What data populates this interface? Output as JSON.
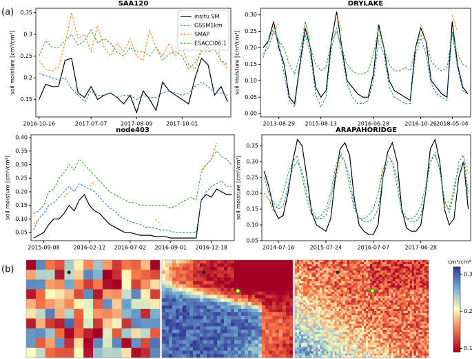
{
  "panel_labels": [
    "(a)",
    "(b)"
  ],
  "chart_data": [
    {
      "type": "line",
      "title": "SAA120",
      "ylabel": "soil moisture [cm³/cm³]",
      "legend": "upper right",
      "categories": [
        "2016-10-16",
        null,
        null,
        null,
        null,
        null,
        null,
        null,
        "2017-07-07",
        null,
        null,
        null,
        null,
        null,
        null,
        "2017-08-09",
        null,
        null,
        null,
        null,
        null,
        null,
        "2017-10-01",
        null,
        null,
        null,
        null,
        null,
        null,
        null
      ],
      "ylim": [
        0.11,
        0.36
      ],
      "yticks": [
        0.15,
        0.2,
        0.25,
        0.3,
        0.35
      ],
      "series": [
        {
          "name": "insitu SM",
          "color": "#000000",
          "linestyle": "solid",
          "values": [
            0.15,
            0.185,
            0.18,
            0.18,
            0.24,
            0.245,
            0.165,
            0.155,
            0.18,
            0.15,
            0.16,
            0.165,
            0.155,
            0.14,
            0.16,
            0.12,
            0.17,
            0.15,
            0.125,
            0.19,
            0.17,
            0.16,
            0.15,
            0.14,
            0.2,
            0.245,
            0.23,
            0.16,
            0.18,
            0.145
          ]
        },
        {
          "name": "GSSM1km",
          "color": "#1f77b4",
          "linestyle": "dashed",
          "values": [
            0.21,
            0.205,
            0.2,
            0.195,
            0.2,
            0.175,
            0.16,
            0.145,
            0.17,
            0.16,
            0.16,
            0.165,
            0.155,
            0.16,
            0.16,
            0.15,
            0.16,
            0.155,
            0.155,
            0.165,
            0.17,
            0.165,
            0.16,
            0.165,
            0.18,
            0.19,
            0.18,
            0.165,
            0.165,
            0.16
          ]
        },
        {
          "name": "SMAP",
          "color": "#ff7f0e",
          "linestyle": "dashed",
          "values": [
            0.24,
            0.22,
            0.215,
            0.225,
            0.28,
            0.35,
            0.29,
            0.3,
            0.26,
            0.32,
            0.27,
            0.25,
            0.28,
            0.26,
            0.29,
            0.25,
            0.24,
            0.31,
            0.27,
            0.25,
            0.28,
            0.25,
            0.27,
            0.23,
            0.22,
            0.27,
            0.28,
            0.3,
            0.24,
            0.22
          ]
        },
        {
          "name": "ESACCI06.1",
          "color": "#2ca02c",
          "linestyle": "dashed",
          "values": [
            0.25,
            0.285,
            0.27,
            0.27,
            0.285,
            0.3,
            0.275,
            0.285,
            0.31,
            0.28,
            0.29,
            0.28,
            0.26,
            0.25,
            0.27,
            0.26,
            0.26,
            0.25,
            0.27,
            0.24,
            0.255,
            0.26,
            0.25,
            0.22,
            0.235,
            0.26,
            0.26,
            0.265,
            0.24,
            0.23
          ]
        }
      ]
    },
    {
      "type": "line",
      "title": "DRYLAKE",
      "ylabel": "soil moisture [cm³/cm³]",
      "categories": [
        null,
        null,
        null,
        "2013-08-29",
        null,
        null,
        null,
        null,
        null,
        null,
        null,
        "2015-08-13",
        null,
        null,
        null,
        null,
        null,
        null,
        null,
        null,
        null,
        "2016-06-28",
        null,
        null,
        null,
        null,
        null,
        null,
        null,
        null,
        "2016-10-26",
        null,
        null,
        null,
        null,
        null,
        "2018-05-04",
        null,
        null,
        null
      ],
      "ylim": [
        -0.01,
        0.32
      ],
      "yticks": [
        {
          "value": 0,
          "label": "0.00"
        },
        0.05,
        {
          "value": 0.1,
          "label": "0.10"
        },
        0.15,
        {
          "value": 0.2,
          "label": "0.20"
        },
        0.25,
        {
          "value": 0.3,
          "label": "0.30"
        }
      ],
      "series": [
        {
          "color": "#000000",
          "linestyle": "solid",
          "values": [
            0.2,
            0.22,
            0.28,
            0.2,
            0.15,
            0.05,
            0.03,
            0.15,
            0.26,
            0.2,
            0.08,
            0.05,
            0.07,
            0.22,
            0.31,
            0.2,
            0.1,
            0.08,
            0.06,
            0.05,
            0.05,
            0.12,
            0.27,
            0.2,
            0.1,
            0.07,
            0.06,
            0.05,
            0.04,
            0.2,
            0.26,
            0.22,
            0.1,
            0.08,
            0.06,
            0.05,
            0.28,
            0.15,
            0.08,
            0.06
          ]
        },
        {
          "color": "#1f77b4",
          "linestyle": "dashed",
          "values": [
            0.18,
            0.2,
            0.25,
            0.22,
            0.12,
            0.04,
            0.02,
            0.14,
            0.24,
            0.18,
            0.06,
            0.02,
            0.05,
            0.2,
            0.26,
            0.18,
            0.09,
            0.05,
            0.03,
            0.03,
            0.04,
            0.1,
            0.22,
            0.18,
            0.08,
            0.05,
            0.04,
            0.03,
            0.03,
            0.18,
            0.23,
            0.18,
            0.09,
            0.06,
            0.05,
            0.04,
            0.25,
            0.14,
            0.07,
            0.06
          ]
        },
        {
          "color": "#ff7f0e",
          "linestyle": "dashed",
          "values": [
            null,
            null,
            0.24,
            0.28,
            null,
            null,
            null,
            null,
            0.28,
            0.22,
            null,
            null,
            null,
            null,
            0.3,
            0.25,
            null,
            null,
            null,
            null,
            null,
            null,
            0.24,
            0.2,
            null,
            null,
            null,
            null,
            null,
            null,
            0.27,
            0.22,
            null,
            null,
            null,
            null,
            0.3,
            0.25,
            null,
            null
          ]
        },
        {
          "color": "#2ca02c",
          "linestyle": "dashed",
          "values": [
            0.17,
            0.22,
            0.26,
            0.22,
            0.2,
            0.15,
            0.12,
            0.18,
            0.28,
            0.2,
            0.15,
            0.13,
            0.14,
            0.22,
            0.25,
            0.2,
            0.15,
            0.13,
            0.12,
            0.12,
            0.13,
            0.18,
            0.26,
            0.2,
            0.15,
            0.13,
            0.13,
            0.14,
            0.13,
            0.2,
            0.24,
            0.22,
            0.16,
            0.14,
            0.13,
            0.14,
            0.24,
            0.18,
            0.15,
            0.14
          ]
        }
      ]
    },
    {
      "type": "line",
      "title": "node403",
      "ylabel": "soil moisture [cm³/cm³]",
      "categories": [
        null,
        null,
        "2015-09-08",
        null,
        null,
        null,
        null,
        null,
        null,
        null,
        null,
        "2016-02-12",
        null,
        null,
        null,
        null,
        null,
        null,
        null,
        "2016-07-02",
        null,
        null,
        null,
        null,
        null,
        null,
        null,
        "2016-09-01",
        null,
        null,
        null,
        null,
        null,
        null,
        null,
        "2016-12-18",
        null,
        null,
        null,
        null
      ],
      "ylim": [
        0.02,
        0.41
      ],
      "yticks": [
        0.05,
        {
          "value": 0.1,
          "label": "0.10"
        },
        0.15,
        {
          "value": 0.2,
          "label": "0.20"
        },
        0.25,
        {
          "value": 0.3,
          "label": "0.30"
        },
        0.35,
        {
          "value": 0.4,
          "label": "0.40"
        }
      ],
      "series": [
        {
          "color": "#000000",
          "linestyle": "solid",
          "values": [
            0.03,
            0.04,
            0.05,
            0.08,
            0.1,
            0.1,
            0.12,
            0.15,
            0.13,
            0.17,
            0.19,
            0.15,
            0.13,
            0.12,
            0.1,
            0.08,
            0.07,
            0.06,
            0.05,
            0.05,
            0.045,
            0.04,
            0.04,
            0.04,
            0.035,
            0.035,
            0.035,
            0.03,
            0.03,
            0.03,
            0.03,
            0.03,
            0.03,
            0.17,
            0.19,
            0.18,
            0.21,
            0.2,
            0.19,
            0.19
          ]
        },
        {
          "color": "#1f77b4",
          "linestyle": "dashed",
          "values": [
            0.06,
            0.1,
            0.12,
            0.15,
            0.16,
            0.18,
            0.2,
            0.22,
            0.2,
            0.23,
            0.22,
            0.21,
            0.2,
            0.18,
            0.16,
            0.14,
            0.13,
            0.11,
            0.1,
            0.09,
            0.085,
            0.08,
            0.07,
            0.07,
            0.065,
            0.06,
            0.06,
            0.055,
            0.05,
            0.05,
            0.05,
            0.05,
            0.05,
            0.17,
            0.2,
            0.22,
            0.23,
            0.24,
            0.22,
            0.22
          ]
        },
        {
          "color": "#ff7f0e",
          "linestyle": "dashed",
          "values": [
            0.08,
            0.1,
            null,
            null,
            null,
            null,
            0.18,
            0.2,
            null,
            null,
            null,
            0.22,
            0.24,
            null,
            null,
            null,
            null,
            null,
            null,
            null,
            null,
            null,
            null,
            null,
            0.1,
            0.08,
            null,
            null,
            null,
            null,
            null,
            null,
            null,
            0.28,
            0.3,
            0.32,
            0.38,
            null,
            null,
            null
          ]
        },
        {
          "color": "#2ca02c",
          "linestyle": "dashed",
          "values": [
            0.12,
            0.13,
            0.15,
            0.2,
            0.21,
            0.25,
            0.27,
            0.3,
            0.28,
            0.32,
            0.3,
            0.28,
            0.26,
            0.24,
            0.22,
            0.2,
            0.19,
            0.18,
            0.17,
            0.16,
            0.16,
            0.15,
            0.15,
            0.15,
            0.15,
            0.15,
            0.15,
            0.14,
            0.15,
            0.16,
            0.17,
            0.18,
            0.17,
            0.27,
            0.3,
            0.32,
            0.35,
            0.33,
            0.32,
            0.3
          ]
        }
      ]
    },
    {
      "type": "line",
      "title": "ARAPAHORIDGE",
      "ylabel": "soil moisture [cm³/cm³]",
      "categories": [
        null,
        null,
        null,
        "2014-07-16",
        null,
        null,
        null,
        null,
        null,
        null,
        null,
        null,
        null,
        "2015-07-24",
        null,
        null,
        null,
        null,
        null,
        null,
        null,
        null,
        null,
        "2016-07-07",
        null,
        null,
        null,
        null,
        null,
        null,
        null,
        null,
        null,
        "2017-06-28",
        null,
        null,
        null,
        null,
        null,
        null,
        null,
        null,
        null,
        null
      ],
      "ylim": [
        0.05,
        0.385
      ],
      "yticks": [
        0.05,
        {
          "value": 0.1,
          "label": "0.10"
        },
        0.15,
        {
          "value": 0.2,
          "label": "0.20"
        },
        0.25,
        {
          "value": 0.3,
          "label": "0.30"
        },
        0.35
      ],
      "series": [
        {
          "color": "#000000",
          "linestyle": "solid",
          "values": [
            0.27,
            0.22,
            0.15,
            0.12,
            0.13,
            0.2,
            0.3,
            0.37,
            0.35,
            0.25,
            0.14,
            0.1,
            0.09,
            0.08,
            0.12,
            0.25,
            0.34,
            0.36,
            0.32,
            0.18,
            0.1,
            0.08,
            0.07,
            0.07,
            0.1,
            0.25,
            0.33,
            0.36,
            0.3,
            0.15,
            0.09,
            0.08,
            0.08,
            0.1,
            0.2,
            0.34,
            0.37,
            0.3,
            0.15,
            0.1,
            0.12,
            0.25,
            0.3,
            0.15
          ]
        },
        {
          "color": "#1f77b4",
          "linestyle": "dashed",
          "values": [
            0.25,
            0.2,
            0.17,
            0.15,
            0.16,
            0.22,
            0.28,
            0.3,
            0.27,
            0.2,
            0.15,
            0.12,
            0.12,
            0.13,
            0.18,
            0.26,
            0.32,
            0.3,
            0.25,
            0.16,
            0.12,
            0.11,
            0.11,
            0.12,
            0.15,
            0.25,
            0.3,
            0.3,
            0.25,
            0.15,
            0.12,
            0.11,
            0.11,
            0.13,
            0.2,
            0.3,
            0.32,
            0.28,
            0.18,
            0.14,
            0.2,
            0.3,
            0.32,
            0.2
          ]
        },
        {
          "color": "#ff7f0e",
          "linestyle": "dashed",
          "values": [
            null,
            0.18,
            0.14,
            null,
            null,
            null,
            null,
            null,
            null,
            null,
            null,
            null,
            null,
            null,
            null,
            0.24,
            0.3,
            null,
            null,
            null,
            null,
            null,
            null,
            null,
            0.2,
            0.28,
            null,
            null,
            null,
            null,
            null,
            null,
            null,
            null,
            null,
            null,
            null,
            null,
            0.15,
            0.18,
            null,
            null,
            0.32,
            0.26
          ]
        },
        {
          "color": "#2ca02c",
          "linestyle": "dashed",
          "values": [
            0.2,
            0.18,
            0.15,
            0.16,
            0.2,
            0.26,
            0.3,
            0.32,
            0.25,
            0.18,
            0.13,
            0.12,
            0.13,
            0.15,
            0.2,
            0.28,
            0.33,
            0.3,
            0.22,
            0.15,
            0.12,
            0.12,
            0.13,
            0.15,
            0.2,
            0.27,
            0.32,
            0.3,
            0.22,
            0.14,
            0.12,
            0.12,
            0.13,
            0.16,
            0.22,
            0.3,
            0.33,
            0.27,
            0.17,
            0.15,
            0.22,
            0.28,
            0.3,
            0.18
          ]
        }
      ]
    },
    {
      "type": "colorbar",
      "label": "cm³/cm³",
      "ylim": [
        0.09,
        0.32
      ],
      "yticks": [
        0.1,
        0.2,
        0.3
      ]
    }
  ]
}
